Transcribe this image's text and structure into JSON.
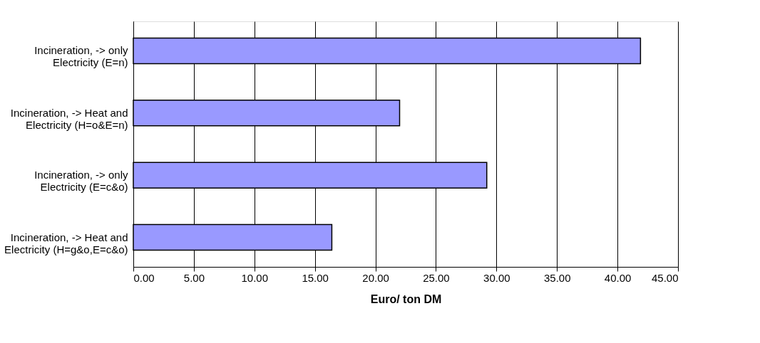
{
  "chart_data": {
    "type": "bar",
    "orientation": "horizontal",
    "xlabel": "Euro/ ton DM",
    "categories": [
      "Incineration, -> only\nElectricity (E=n)",
      "Incineration, -> Heat and\nElectricity (H=o&E=n)",
      "Incineration, -> only\nElectricity (E=c&o)",
      "Incineration, -> Heat and\nElectricity (H=g&o,E=c&o)"
    ],
    "values": [
      41.9,
      22.0,
      29.2,
      16.4
    ],
    "color": "#9999ff",
    "xlim": [
      0,
      45
    ],
    "xticks": [
      {
        "value": 0,
        "label": "0.00"
      },
      {
        "value": 5,
        "label": "5.00"
      },
      {
        "value": 10,
        "label": "10.00"
      },
      {
        "value": 15,
        "label": "15.00"
      },
      {
        "value": 20,
        "label": "20.00"
      },
      {
        "value": 25,
        "label": "25.00"
      },
      {
        "value": 30,
        "label": "30.00"
      },
      {
        "value": 35,
        "label": "35.00"
      },
      {
        "value": 40,
        "label": "40.00"
      },
      {
        "value": 45,
        "label": "45.00"
      }
    ],
    "grid": "x"
  }
}
